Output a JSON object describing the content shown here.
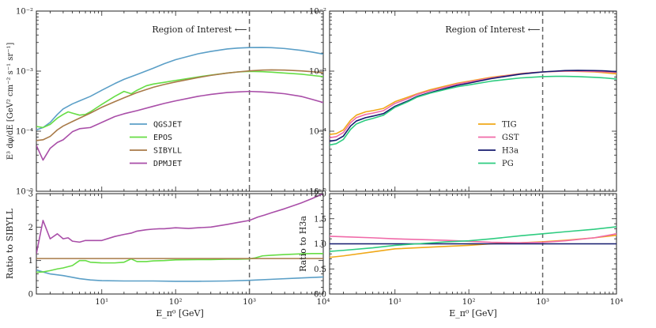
{
  "chart_data": [
    {
      "id": "top-left",
      "type": "line",
      "xscale": "log",
      "yscale": "log",
      "xlim": [
        1.3,
        10000
      ],
      "ylim": [
        1e-05,
        0.01
      ],
      "ylabel": "E³ dφ/dE [GeV² cm⁻² s⁻¹ sr⁻¹]",
      "ytick_labels": [
        "10⁻⁵",
        "10⁻⁴",
        "10⁻³",
        "10⁻²"
      ],
      "annotation": "Region of Interest ⟵",
      "vline": 1000,
      "legend_position": "lower-center",
      "series": [
        {
          "name": "QGSJET",
          "color": "#5b9fc7",
          "x": [
            1.3,
            1.6,
            2,
            2.5,
            3,
            4,
            5,
            7,
            10,
            15,
            20,
            30,
            50,
            70,
            100,
            200,
            300,
            500,
            700,
            1000,
            1500,
            2000,
            3000,
            5000,
            7000,
            10000
          ],
          "y": [
            0.000105,
            0.000115,
            0.00014,
            0.00019,
            0.000235,
            0.000285,
            0.00032,
            0.00038,
            0.00048,
            0.00062,
            0.00073,
            0.00088,
            0.00112,
            0.00133,
            0.00155,
            0.00194,
            0.00213,
            0.00234,
            0.00242,
            0.00247,
            0.00248,
            0.00246,
            0.00238,
            0.00222,
            0.00208,
            0.00192
          ]
        },
        {
          "name": "EPOS",
          "color": "#66dd44",
          "x": [
            1.3,
            1.6,
            2,
            2.5,
            3,
            3.5,
            4,
            5,
            6,
            7,
            10,
            15,
            20,
            25,
            30,
            40,
            50,
            70,
            100,
            200,
            300,
            500,
            700,
            1000,
            1500,
            2000,
            3000,
            5000,
            7000,
            10000
          ],
          "y": [
            0.00012,
            0.000115,
            0.00013,
            0.000165,
            0.00019,
            0.00021,
            0.0002,
            0.000185,
            0.00019,
            0.00021,
            0.00028,
            0.00038,
            0.00046,
            0.00042,
            0.00048,
            0.00057,
            0.00061,
            0.00065,
            0.0007,
            0.0008,
            0.00086,
            0.00093,
            0.00097,
            0.00099,
            0.00098,
            0.00096,
            0.00093,
            0.00089,
            0.00085,
            0.00081
          ]
        },
        {
          "name": "SIBYLL",
          "color": "#a87a48",
          "x": [
            1.3,
            1.6,
            2,
            2.5,
            3,
            4,
            5,
            7,
            10,
            15,
            20,
            30,
            50,
            70,
            100,
            200,
            300,
            500,
            700,
            1000,
            1500,
            2000,
            3000,
            5000,
            7000,
            10000
          ],
          "y": [
            7e-05,
            7.2e-05,
            8.2e-05,
            0.000105,
            0.000122,
            0.000145,
            0.000165,
            0.0002,
            0.00025,
            0.00031,
            0.00036,
            0.00044,
            0.00054,
            0.0006,
            0.00066,
            0.00078,
            0.00085,
            0.00093,
            0.00097,
            0.00101,
            0.00104,
            0.00105,
            0.00104,
            0.00101,
            0.00098,
            0.00094
          ]
        },
        {
          "name": "DPMJET",
          "color": "#a94ea8",
          "x": [
            1.3,
            1.6,
            2,
            2.5,
            3,
            4,
            5,
            7,
            10,
            15,
            20,
            30,
            50,
            70,
            100,
            200,
            300,
            500,
            700,
            1000,
            1500,
            2000,
            3000,
            5000,
            7000,
            10000
          ],
          "y": [
            5.8e-05,
            3.3e-05,
            5.2e-05,
            6.5e-05,
            7.2e-05,
            9.8e-05,
            0.00011,
            0.000115,
            0.00014,
            0.000175,
            0.000195,
            0.00022,
            0.00026,
            0.00029,
            0.00032,
            0.00038,
            0.00041,
            0.00044,
            0.00045,
            0.00046,
            0.00045,
            0.00044,
            0.00042,
            0.00038,
            0.00034,
            0.0003
          ]
        }
      ]
    },
    {
      "id": "top-right",
      "type": "line",
      "xscale": "log",
      "yscale": "log",
      "xlim": [
        1.3,
        10000
      ],
      "ylim": [
        1e-05,
        0.01
      ],
      "ytick_labels": [
        "10⁻⁵",
        "10⁻⁴",
        "10⁻³",
        "10⁻²"
      ],
      "annotation": "Region of Interest ⟵",
      "vline": 1000,
      "legend_position": "lower-right",
      "series": [
        {
          "name": "TIG",
          "color": "#f0a818",
          "x": [
            1.3,
            1.6,
            2,
            2.5,
            3,
            4,
            5,
            7,
            10,
            15,
            20,
            30,
            50,
            70,
            100,
            200,
            300,
            500,
            700,
            1000,
            1500,
            2000,
            3000,
            5000,
            7000,
            10000
          ],
          "y": [
            8.85e-05,
            9.12e-05,
            0.000105,
            0.000152,
            0.000185,
            0.00021,
            0.00022,
            0.00024,
            0.00031,
            0.00037,
            0.00042,
            0.00049,
            0.00057,
            0.00063,
            0.00068,
            0.00079,
            0.00084,
            0.00091,
            0.00094,
            0.00097,
            0.00099,
            0.001,
            0.00099,
            0.00097,
            0.00094,
            0.0009
          ]
        },
        {
          "name": "GST",
          "color": "#f06aa8",
          "x": [
            1.3,
            1.6,
            2,
            2.5,
            3,
            4,
            5,
            7,
            10,
            15,
            20,
            30,
            50,
            70,
            100,
            200,
            300,
            500,
            700,
            1000,
            1500,
            2000,
            3000,
            5000,
            7000,
            10000
          ],
          "y": [
            7.8e-05,
            8.1e-05,
            9.5e-05,
            0.000138,
            0.000168,
            0.00019,
            0.0002,
            0.00022,
            0.00029,
            0.00035,
            0.00041,
            0.00047,
            0.00055,
            0.00061,
            0.00066,
            0.00077,
            0.00083,
            0.0009,
            0.00094,
            0.00097,
            0.00099,
            0.001,
            0.001,
            0.00099,
            0.00097,
            0.00095
          ]
        },
        {
          "name": "H3a",
          "color": "#141a6e",
          "x": [
            1.3,
            1.6,
            2,
            2.5,
            3,
            4,
            5,
            7,
            10,
            15,
            20,
            30,
            50,
            70,
            100,
            200,
            300,
            500,
            700,
            1000,
            1500,
            2000,
            3000,
            5000,
            7000,
            10000
          ],
          "y": [
            6.8e-05,
            7.1e-05,
            8.3e-05,
            0.000122,
            0.000148,
            0.000168,
            0.000178,
            0.000197,
            0.00026,
            0.00032,
            0.00038,
            0.00044,
            0.00052,
            0.00058,
            0.00063,
            0.00075,
            0.00081,
            0.00089,
            0.00093,
            0.00097,
            0.001,
            0.00102,
            0.00103,
            0.00102,
            0.00101,
            0.00098
          ]
        },
        {
          "name": "PG",
          "color": "#2ecc80",
          "x": [
            1.3,
            1.6,
            2,
            2.5,
            3,
            4,
            5,
            7,
            10,
            15,
            20,
            30,
            50,
            70,
            100,
            200,
            300,
            500,
            700,
            1000,
            1500,
            2000,
            3000,
            5000,
            7000,
            10000
          ],
          "y": [
            5.9e-05,
            6.2e-05,
            7.3e-05,
            0.000107,
            0.000132,
            0.000152,
            0.000163,
            0.000185,
            0.00025,
            0.00031,
            0.00037,
            0.00043,
            0.0005,
            0.00055,
            0.00059,
            0.00068,
            0.00072,
            0.00077,
            0.00079,
            0.00081,
            0.00082,
            0.00082,
            0.00081,
            0.00079,
            0.00077,
            0.00074
          ]
        }
      ]
    },
    {
      "id": "bottom-left",
      "type": "line",
      "xscale": "log",
      "yscale": "linear",
      "xlim": [
        1.3,
        10000
      ],
      "ylim": [
        0,
        3
      ],
      "xlabel": "E_π⁰ [GeV]",
      "ylabel": "Ratio to SIBYLL",
      "xtick_labels": [
        "10¹",
        "10²",
        "10³",
        "10⁴"
      ],
      "ytick_labels": [
        "0",
        "1",
        "2",
        "3"
      ],
      "vline": 1000,
      "series": [
        {
          "name": "QGSJET",
          "color": "#5b9fc7",
          "x": [
            1.3,
            1.6,
            2,
            3,
            5,
            7,
            10,
            20,
            50,
            100,
            200,
            500,
            1000,
            2000,
            5000,
            10000
          ],
          "y": [
            0.72,
            0.66,
            0.6,
            0.55,
            0.46,
            0.42,
            0.4,
            0.39,
            0.39,
            0.38,
            0.38,
            0.39,
            0.41,
            0.44,
            0.48,
            0.51
          ]
        },
        {
          "name": "EPOS",
          "color": "#66dd44",
          "x": [
            1.3,
            1.6,
            2,
            2.5,
            3,
            4,
            5,
            6,
            7,
            10,
            15,
            20,
            25,
            30,
            40,
            50,
            70,
            100,
            200,
            300,
            500,
            700,
            1000,
            1200,
            1500,
            2000,
            3000,
            5000,
            7000,
            10000
          ],
          "y": [
            0.65,
            0.66,
            0.7,
            0.75,
            0.78,
            0.85,
            1.0,
            1.0,
            0.95,
            0.93,
            0.93,
            0.95,
            1.05,
            0.97,
            0.97,
            0.99,
            1.0,
            1.02,
            1.03,
            1.03,
            1.04,
            1.04,
            1.05,
            1.08,
            1.14,
            1.16,
            1.18,
            1.2,
            1.21,
            1.21
          ]
        },
        {
          "name": "SIBYLL",
          "color": "#a87a48",
          "x": [
            1.3,
            10000
          ],
          "y": [
            1.06,
            1.06
          ]
        },
        {
          "name": "DPMJET",
          "color": "#a94ea8",
          "x": [
            1.3,
            1.6,
            2,
            2.5,
            3,
            3.5,
            4,
            5,
            6,
            7,
            10,
            15,
            20,
            25,
            30,
            40,
            50,
            60,
            70,
            100,
            150,
            200,
            300,
            500,
            700,
            1000,
            1300,
            1600,
            2000,
            3000,
            5000,
            7000,
            10000
          ],
          "y": [
            1.2,
            2.2,
            1.65,
            1.8,
            1.65,
            1.68,
            1.58,
            1.55,
            1.6,
            1.6,
            1.6,
            1.72,
            1.78,
            1.82,
            1.88,
            1.92,
            1.94,
            1.95,
            1.95,
            1.98,
            1.96,
            1.98,
            2.0,
            2.08,
            2.14,
            2.2,
            2.3,
            2.36,
            2.43,
            2.55,
            2.72,
            2.85,
            3.0
          ]
        }
      ]
    },
    {
      "id": "bottom-right",
      "type": "line",
      "xscale": "log",
      "yscale": "linear",
      "xlim": [
        1.3,
        10000
      ],
      "ylim": [
        0,
        2
      ],
      "xlabel": "E_π⁰ [GeV]",
      "ylabel": "Ratio to H3a",
      "xtick_labels": [
        "10¹",
        "10²",
        "10³",
        "10⁴"
      ],
      "ytick_labels": [
        "0.0",
        "0.5",
        "1.0",
        "1.5",
        "2.0"
      ],
      "vline": 1000,
      "series": [
        {
          "name": "TIG",
          "color": "#f0a818",
          "x": [
            1.3,
            2,
            5,
            10,
            50,
            100,
            200,
            500,
            1000,
            2000,
            5000,
            10000
          ],
          "y": [
            0.73,
            0.76,
            0.84,
            0.9,
            0.95,
            0.97,
            1.0,
            1.02,
            1.04,
            1.07,
            1.12,
            1.17
          ]
        },
        {
          "name": "GST",
          "color": "#f06aa8",
          "x": [
            1.3,
            2,
            5,
            10,
            50,
            100,
            200,
            500,
            1000,
            2000,
            5000,
            10000
          ],
          "y": [
            1.15,
            1.14,
            1.12,
            1.1,
            1.07,
            1.05,
            1.03,
            1.02,
            1.03,
            1.06,
            1.12,
            1.2
          ]
        },
        {
          "name": "H3a",
          "color": "#141a6e",
          "x": [
            1.3,
            10000
          ],
          "y": [
            1.0,
            1.0
          ]
        },
        {
          "name": "PG",
          "color": "#2ecc80",
          "x": [
            1.3,
            2,
            5,
            10,
            20,
            50,
            100,
            200,
            500,
            1000,
            2000,
            5000,
            10000
          ],
          "y": [
            0.85,
            0.87,
            0.92,
            0.97,
            1.0,
            1.04,
            1.06,
            1.1,
            1.16,
            1.2,
            1.24,
            1.29,
            1.34
          ]
        }
      ]
    }
  ]
}
